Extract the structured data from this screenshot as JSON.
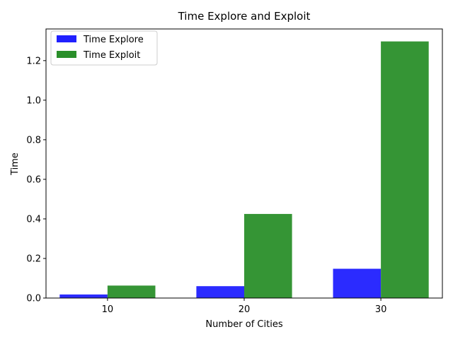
{
  "chart_data": {
    "type": "bar",
    "title": "Time Explore and Exploit",
    "xlabel": "Number of Cities",
    "ylabel": "Time",
    "categories": [
      "10",
      "20",
      "30"
    ],
    "ylim": [
      0,
      1.36
    ],
    "yticks": [
      0.0,
      0.2,
      0.4,
      0.6,
      0.8,
      1.0,
      1.2
    ],
    "ytick_labels": [
      "0.0",
      "0.2",
      "0.4",
      "0.6",
      "0.8",
      "1.0",
      "1.2"
    ],
    "grid": false,
    "legend_position": "top-left",
    "series": [
      {
        "name": "Time Explore",
        "color": "#2020ff",
        "values": [
          0.018,
          0.06,
          0.148
        ]
      },
      {
        "name": "Time Exploit",
        "color": "#2a8f2a",
        "values": [
          0.063,
          0.425,
          1.297
        ]
      }
    ]
  }
}
